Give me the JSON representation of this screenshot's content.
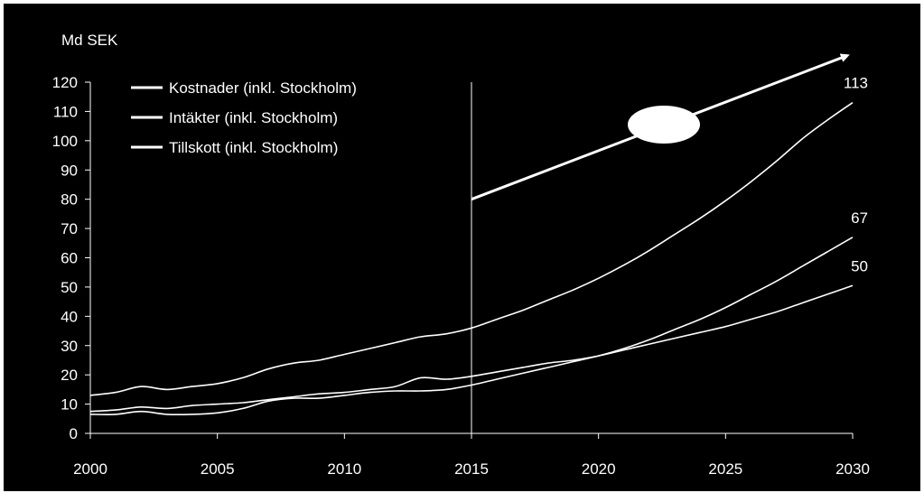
{
  "chart_data": {
    "type": "line",
    "title": "",
    "ylabel": "Md SEK",
    "xlabel": "",
    "xlim": [
      2000,
      2030
    ],
    "ylim": [
      0,
      120
    ],
    "x_ticks": [
      "2000",
      "2005",
      "2010",
      "2015",
      "2020",
      "2025",
      "2030"
    ],
    "y_ticks": [
      "0",
      "10",
      "20",
      "30",
      "40",
      "50",
      "60",
      "70",
      "80",
      "90",
      "100",
      "110",
      "120"
    ],
    "grid": false,
    "legend_position": "top-left",
    "background": "#000000",
    "line_color": "#ffffff",
    "vertical_marker_x": 2015,
    "series": [
      {
        "name": "Kostnader (inkl. Stockholm)",
        "x": [
          2000,
          2001,
          2002,
          2003,
          2004,
          2005,
          2006,
          2007,
          2008,
          2009,
          2010,
          2011,
          2012,
          2013,
          2014,
          2015,
          2016,
          2017,
          2018,
          2019,
          2020,
          2021,
          2022,
          2023,
          2024,
          2025,
          2026,
          2027,
          2028,
          2029,
          2030
        ],
        "values": [
          13,
          14,
          16,
          15,
          16,
          17,
          19,
          22,
          24,
          25,
          27,
          29,
          31,
          33,
          34,
          36,
          39,
          42,
          45.5,
          49,
          53,
          57.5,
          62.5,
          68,
          73.5,
          79.5,
          86,
          93,
          100.5,
          107,
          113
        ]
      },
      {
        "name": "Intäkter (inkl. Stockholm)",
        "x": [
          2000,
          2001,
          2002,
          2003,
          2004,
          2005,
          2006,
          2007,
          2008,
          2009,
          2010,
          2011,
          2012,
          2013,
          2014,
          2015,
          2016,
          2017,
          2018,
          2019,
          2020,
          2021,
          2022,
          2023,
          2024,
          2025,
          2026,
          2027,
          2028,
          2029,
          2030
        ],
        "values": [
          6.5,
          6.5,
          7.5,
          6.5,
          6.5,
          7,
          8.5,
          11,
          12,
          12,
          13,
          14,
          14.5,
          14.5,
          15,
          16.5,
          18.5,
          20.5,
          22.5,
          24.5,
          26.5,
          29,
          32,
          35.5,
          39,
          43,
          47.5,
          52,
          57,
          62,
          67
        ]
      },
      {
        "name": "Tillskott (inkl. Stockholm)",
        "x": [
          2000,
          2001,
          2002,
          2003,
          2004,
          2005,
          2006,
          2007,
          2008,
          2009,
          2010,
          2011,
          2012,
          2013,
          2014,
          2015,
          2016,
          2017,
          2018,
          2019,
          2020,
          2021,
          2022,
          2023,
          2024,
          2025,
          2026,
          2027,
          2028,
          2029,
          2030
        ],
        "values": [
          7.5,
          8,
          9,
          8.5,
          9.5,
          10,
          10.5,
          11.5,
          12.5,
          13.5,
          14,
          15,
          16,
          19,
          18.5,
          19.5,
          21,
          22.5,
          24,
          25,
          26.5,
          28.5,
          30.5,
          32.5,
          34.5,
          36.5,
          39,
          41.5,
          44.5,
          47.5,
          50.5
        ]
      }
    ],
    "end_labels": [
      "113",
      "67",
      "50"
    ],
    "annotations": [
      {
        "type": "arrow",
        "from": [
          2015,
          80
        ],
        "to": [
          2030,
          130
        ]
      }
    ]
  }
}
